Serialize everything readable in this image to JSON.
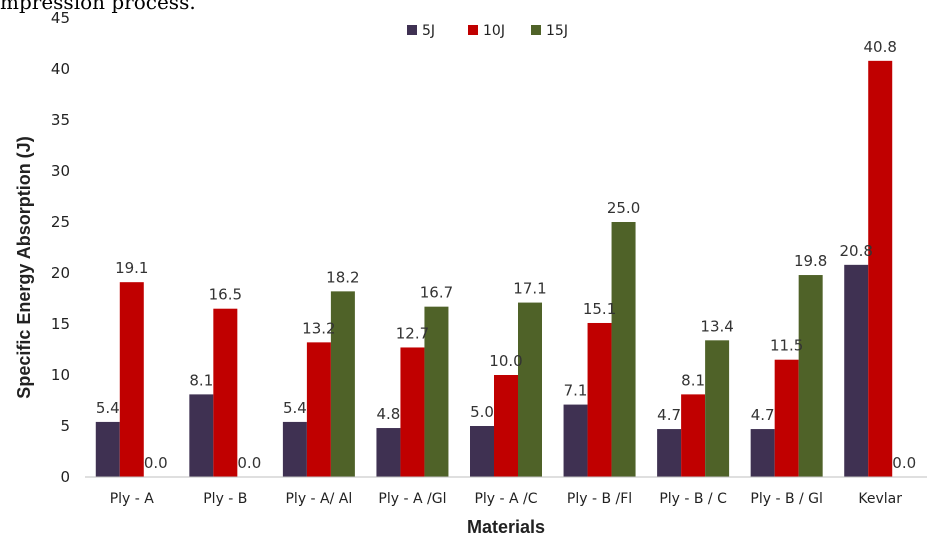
{
  "caption_fragment": "mpression process.",
  "chart_data": {
    "type": "bar",
    "title": "",
    "xlabel": "Materials",
    "ylabel": "Specific Energy Absorption (J)",
    "ylim": [
      0,
      45
    ],
    "yticks": [
      0,
      5,
      10,
      15,
      20,
      25,
      30,
      35,
      40,
      45
    ],
    "grid": false,
    "legend_position": "top-center",
    "categories": [
      "Ply - A",
      "Ply - B",
      "Ply - A/ Al",
      "Ply - A /Gl",
      "Ply - A /C",
      "Ply - B /Fl",
      "Ply - B / C",
      "Ply - B / Gl",
      "Kevlar"
    ],
    "series": [
      {
        "name": "5J",
        "color": "#3f3152",
        "values": [
          5.4,
          8.1,
          5.4,
          4.8,
          5.0,
          7.1,
          4.7,
          4.7,
          20.8
        ],
        "labels": [
          "5.4",
          "8.1",
          "5.4",
          "4.8",
          "5.0",
          "7.1",
          "4.7",
          "4.7",
          "20.8"
        ]
      },
      {
        "name": "10J",
        "color": "#c00000",
        "values": [
          19.1,
          16.5,
          13.2,
          12.7,
          10.0,
          15.1,
          8.1,
          11.5,
          40.8
        ],
        "labels": [
          "19.1",
          "16.5",
          "13.2",
          "12.7",
          "10.0",
          "15.1",
          "8.1",
          "11.5",
          "40.8"
        ]
      },
      {
        "name": "15J",
        "color": "#4f6228",
        "values": [
          0.0,
          0.0,
          18.2,
          16.7,
          17.1,
          25.0,
          13.4,
          19.8,
          0.0
        ],
        "labels": [
          "0.0",
          "0.0",
          "18.2",
          "16.7",
          "17.1",
          "25.0",
          "13.4",
          "19.8",
          "0.0"
        ]
      }
    ]
  }
}
